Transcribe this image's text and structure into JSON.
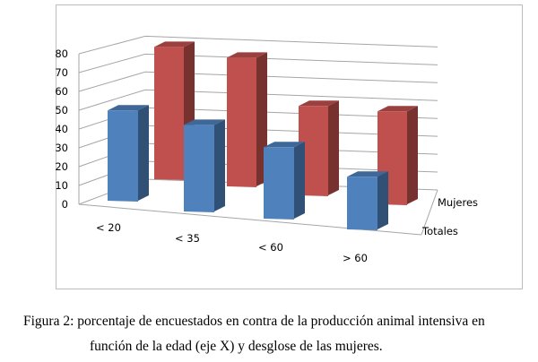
{
  "chart_data": {
    "type": "bar",
    "subtype": "3d-clustered-rows",
    "categories": [
      "< 20",
      "< 35",
      "< 60",
      "> 60"
    ],
    "series": [
      {
        "name": "Totales",
        "values": [
          48,
          46,
          38,
          28
        ],
        "color": "#4f81bd"
      },
      {
        "name": "Mujeres",
        "values": [
          74,
          72,
          50,
          52
        ],
        "color": "#c0504d"
      }
    ],
    "ylim": [
      0,
      80
    ],
    "yticks": [
      0,
      10,
      20,
      30,
      40,
      50,
      60,
      70,
      80
    ],
    "grid": true,
    "legend": "none (series labels on depth axis, right)"
  },
  "caption": {
    "line1": "Figura 2: porcentaje de encuestados en contra de la producción animal intensiva en",
    "line2": "función de la edad (eje X) y desglose de las mujeres."
  }
}
